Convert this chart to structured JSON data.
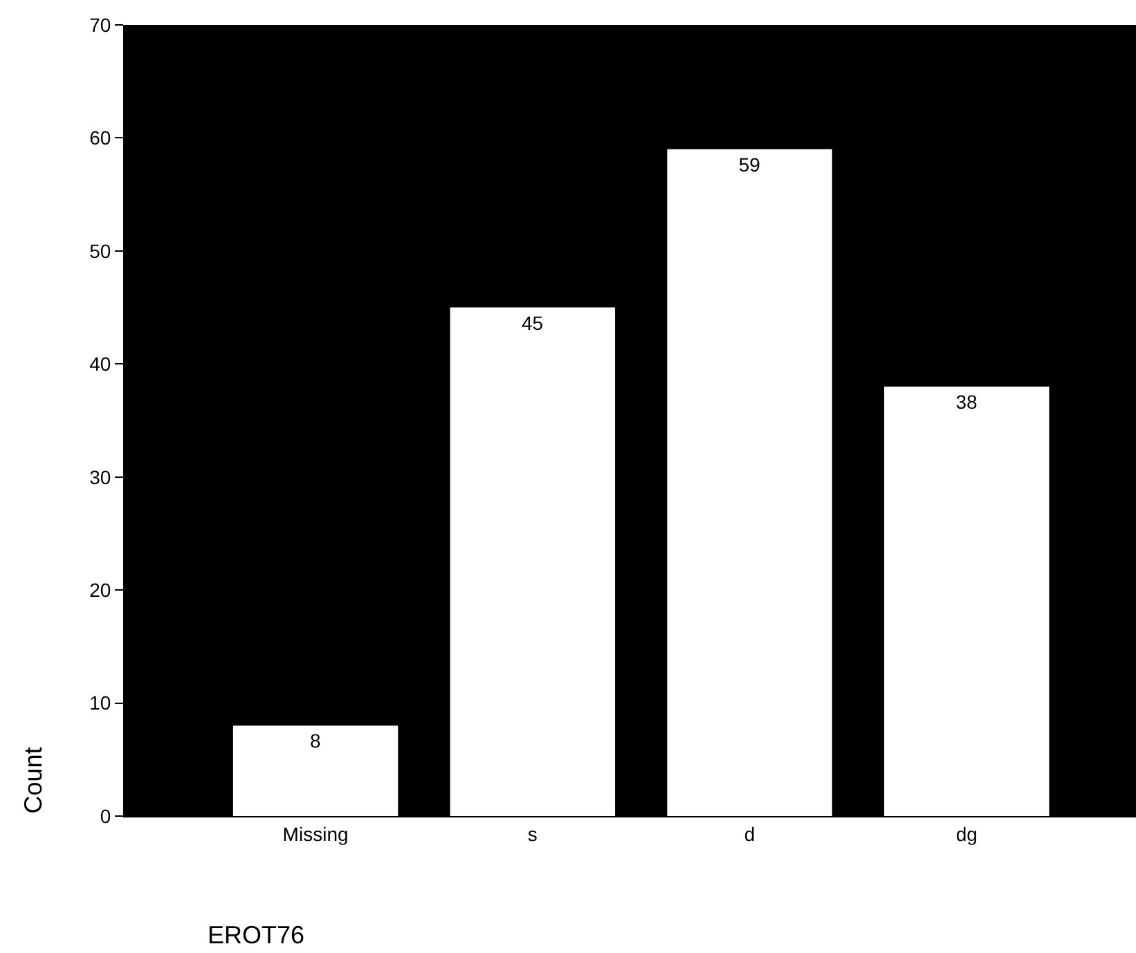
{
  "chart_data": {
    "type": "bar",
    "xlabel": "EROT76",
    "ylabel": "Count",
    "categories": [
      "Missing",
      "s",
      "d",
      "dg"
    ],
    "values": [
      8,
      45,
      59,
      38
    ],
    "color": "#ffffff",
    "data_labels": true,
    "ylim": [
      0,
      70
    ],
    "yticks": [
      0,
      10,
      20,
      30,
      40,
      50,
      60,
      70
    ]
  }
}
